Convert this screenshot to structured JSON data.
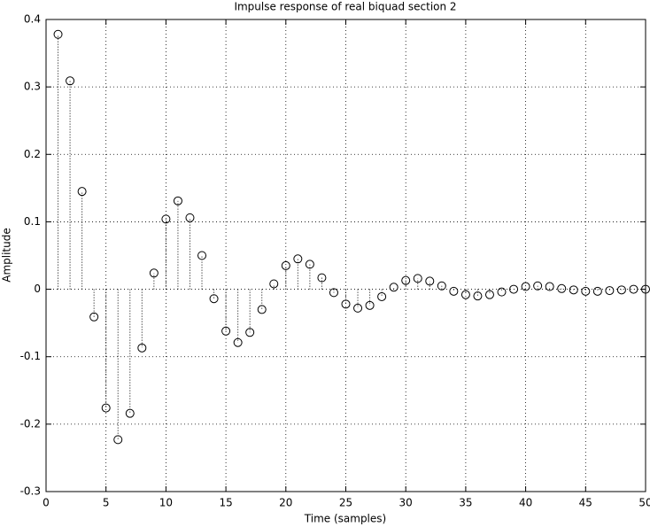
{
  "chart_data": {
    "type": "stem",
    "title": "Impulse response of real biquad section 2",
    "x_label": "Time (samples)",
    "y_label": "Amplitude",
    "x": [
      1,
      2,
      3,
      4,
      5,
      6,
      7,
      8,
      9,
      10,
      11,
      12,
      13,
      14,
      15,
      16,
      17,
      18,
      19,
      20,
      21,
      22,
      23,
      24,
      25,
      26,
      27,
      28,
      29,
      30,
      31,
      32,
      33,
      34,
      35,
      36,
      37,
      38,
      39,
      40,
      41,
      42,
      43,
      44,
      45,
      46,
      47,
      48,
      49,
      50
    ],
    "values": [
      0.378,
      0.309,
      0.145,
      -0.041,
      -0.176,
      -0.223,
      -0.184,
      -0.087,
      0.024,
      0.104,
      0.131,
      0.106,
      0.05,
      -0.014,
      -0.062,
      -0.079,
      -0.064,
      -0.03,
      0.008,
      0.035,
      0.045,
      0.037,
      0.017,
      -0.005,
      -0.022,
      -0.028,
      -0.024,
      -0.011,
      0.003,
      0.013,
      0.016,
      0.012,
      0.005,
      -0.003,
      -0.008,
      -0.01,
      -0.008,
      -0.004,
      0.0,
      0.004,
      0.005,
      0.004,
      0.001,
      -0.001,
      -0.003,
      -0.003,
      -0.002,
      -0.001,
      0.0,
      0.0
    ],
    "color": "#000000",
    "xlim": [
      0,
      50
    ],
    "xticks": [
      0,
      5,
      10,
      15,
      20,
      25,
      30,
      35,
      40,
      45,
      50
    ],
    "ylim": [
      -0.3,
      0.4
    ],
    "yticks": [
      -0.3,
      -0.2,
      -0.1,
      0,
      0.1,
      0.2,
      0.3,
      0.4
    ],
    "grid": true
  }
}
